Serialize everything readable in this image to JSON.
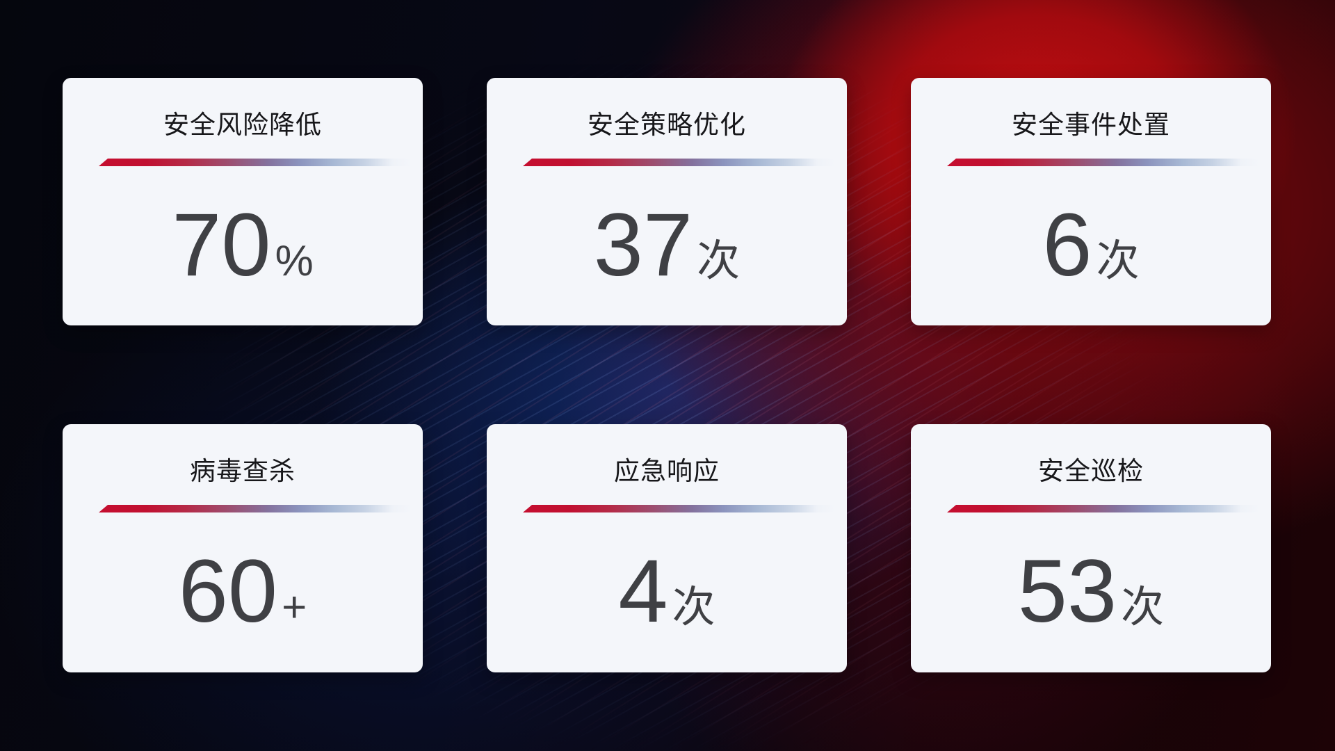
{
  "page": {
    "type": "security-operations-stats-dashboard"
  },
  "cards": [
    {
      "title": "安全风险降低",
      "value": "70",
      "suffix": "%"
    },
    {
      "title": "安全策略优化",
      "value": "37",
      "suffix": "次"
    },
    {
      "title": "安全事件处置",
      "value": "6",
      "suffix": "次"
    },
    {
      "title": "病毒查杀",
      "value": "60",
      "suffix": "+"
    },
    {
      "title": "应急响应",
      "value": "4",
      "suffix": "次"
    },
    {
      "title": "安全巡检",
      "value": "53",
      "suffix": "次"
    }
  ],
  "colors": {
    "background_base": "#06070f",
    "background_red_glow": "#a50b12",
    "background_blue_glow": "#14347f",
    "card_background": "#f4f6fa",
    "title_text": "#17171a",
    "value_text": "#3f4044",
    "divider_gradient_start": "#c50e2f",
    "divider_gradient_end": "#b9c7dd"
  }
}
